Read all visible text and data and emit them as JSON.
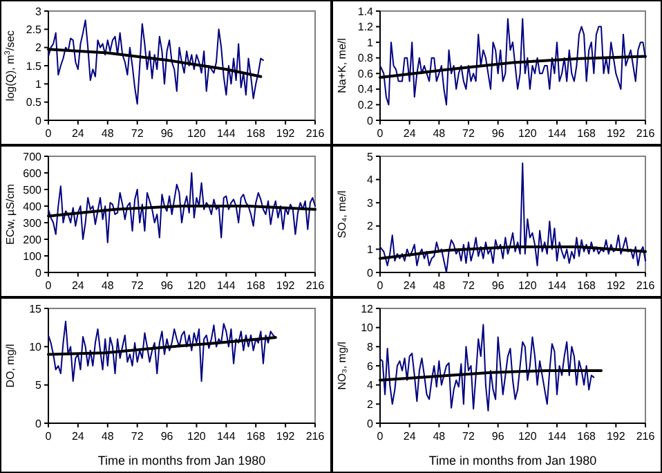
{
  "chart_data": [
    {
      "type": "line",
      "ylabel": "log(Q), m$^{3}$/sec",
      "xlim": [
        0,
        216
      ],
      "xticks": [
        0,
        24,
        48,
        72,
        96,
        120,
        144,
        168,
        192,
        216
      ],
      "ylim": [
        0,
        3
      ],
      "yticks": [
        0,
        0.5,
        1,
        1.5,
        2,
        2.5,
        3
      ],
      "series": [
        {
          "color": "#000080",
          "x": [
            0,
            2,
            4,
            6,
            8,
            10,
            12,
            14,
            16,
            18,
            20,
            22,
            24,
            26,
            28,
            30,
            32,
            34,
            36,
            38,
            40,
            42,
            44,
            46,
            48,
            50,
            52,
            54,
            56,
            58,
            60,
            62,
            64,
            66,
            68,
            70,
            72,
            74,
            76,
            78,
            80,
            82,
            84,
            86,
            88,
            90,
            92,
            94,
            96,
            98,
            100,
            102,
            104,
            106,
            108,
            110,
            112,
            114,
            116,
            118,
            120,
            122,
            124,
            126,
            128,
            130,
            132,
            134,
            136,
            138,
            140,
            142,
            144,
            146,
            148,
            150,
            152,
            154,
            156,
            158,
            160,
            162,
            164,
            166,
            168,
            170,
            172,
            174
          ],
          "values": [
            1.75,
            2.0,
            2.1,
            2.4,
            1.25,
            1.5,
            1.7,
            2.0,
            1.9,
            2.25,
            2.2,
            1.6,
            1.4,
            2.1,
            2.4,
            2.75,
            2.0,
            1.1,
            1.4,
            1.2,
            2.2,
            2.0,
            2.1,
            1.8,
            2.2,
            1.9,
            2.2,
            2.3,
            1.8,
            2.4,
            1.8,
            1.6,
            1.25,
            2.0,
            1.5,
            0.9,
            0.45,
            1.5,
            2.65,
            2.1,
            1.4,
            1.9,
            1.15,
            1.8,
            1.4,
            2.3,
            1.9,
            1.0,
            1.9,
            2.2,
            1.6,
            1.4,
            0.8,
            2.0,
            1.6,
            1.3,
            1.9,
            1.5,
            1.8,
            1.4,
            1.8,
            1.6,
            1.3,
            1.9,
            0.8,
            1.5,
            1.4,
            1.3,
            1.6,
            2.5,
            2.0,
            1.2,
            0.7,
            1.5,
            1.0,
            1.7,
            1.1,
            2.1,
            0.9,
            1.3,
            0.7,
            1.7,
            1.2,
            0.6,
            1.0,
            1.3,
            1.7,
            1.65
          ]
        },
        {
          "type": "line",
          "color": "#000000",
          "x": [
            0,
            48,
            96,
            144,
            172
          ],
          "values": [
            1.95,
            1.85,
            1.65,
            1.4,
            1.2
          ]
        }
      ]
    },
    {
      "type": "line",
      "ylabel": "Na+K, me/l",
      "xlim": [
        0,
        216
      ],
      "xticks": [
        0,
        24,
        48,
        72,
        96,
        120,
        144,
        168,
        192,
        216
      ],
      "ylim": [
        0,
        1.4
      ],
      "yticks": [
        0,
        0.2,
        0.4,
        0.6,
        0.8,
        1,
        1.2,
        1.4
      ],
      "series": [
        {
          "color": "#000080",
          "x": [
            0,
            3,
            5,
            7,
            9,
            11,
            13,
            15,
            18,
            20,
            22,
            24,
            26,
            28,
            30,
            32,
            34,
            36,
            38,
            40,
            42,
            44,
            46,
            48,
            50,
            52,
            54,
            56,
            58,
            60,
            62,
            64,
            66,
            68,
            70,
            72,
            74,
            76,
            78,
            80,
            82,
            84,
            86,
            88,
            90,
            92,
            94,
            96,
            98,
            100,
            102,
            104,
            106,
            108,
            110,
            112,
            114,
            116,
            118,
            120,
            122,
            124,
            126,
            128,
            130,
            132,
            134,
            136,
            138,
            140,
            142,
            144,
            146,
            148,
            150,
            152,
            154,
            156,
            158,
            160,
            162,
            164,
            166,
            168,
            170,
            172,
            174,
            176,
            178,
            180,
            182,
            184,
            186,
            188,
            190,
            192,
            194,
            196,
            198,
            200,
            202,
            204,
            206,
            208,
            210,
            212,
            214,
            216
          ],
          "values": [
            0.7,
            0.6,
            0.3,
            0.2,
            1.0,
            0.7,
            0.65,
            0.5,
            0.5,
            0.8,
            0.8,
            0.5,
            1.0,
            0.3,
            0.6,
            0.8,
            0.6,
            0.7,
            0.6,
            0.5,
            0.8,
            0.8,
            0.5,
            0.6,
            0.7,
            0.4,
            0.2,
            0.9,
            0.6,
            0.7,
            0.4,
            0.6,
            0.7,
            0.5,
            0.4,
            0.7,
            0.5,
            0.6,
            0.5,
            1.1,
            0.7,
            0.9,
            0.8,
            0.6,
            0.4,
            1.0,
            0.9,
            0.6,
            0.9,
            0.5,
            0.6,
            1.3,
            0.9,
            1.0,
            0.7,
            0.4,
            0.6,
            1.3,
            0.6,
            0.8,
            0.4,
            0.7,
            0.6,
            0.8,
            0.6,
            0.6,
            0.7,
            0.7,
            0.4,
            0.8,
            0.6,
            1.0,
            0.5,
            0.6,
            0.8,
            0.5,
            0.9,
            0.6,
            0.5,
            0.7,
            1.1,
            1.2,
            1.1,
            0.5,
            0.9,
            1.0,
            0.6,
            1.1,
            1.2,
            1.2,
            0.6,
            0.8,
            0.6,
            1.0,
            0.8,
            0.6,
            0.5,
            0.4,
            1.1,
            0.7,
            0.8,
            0.9,
            0.7,
            0.5,
            0.9,
            1.0,
            1.0,
            0.8
          ]
        },
        {
          "type": "line",
          "color": "#000000",
          "x": [
            0,
            54,
            108,
            162,
            216
          ],
          "values": [
            0.55,
            0.65,
            0.74,
            0.79,
            0.82
          ]
        }
      ]
    },
    {
      "type": "line",
      "ylabel": "ECw, µS/cm",
      "xlim": [
        0,
        216
      ],
      "xticks": [
        0,
        24,
        48,
        72,
        96,
        120,
        144,
        168,
        192,
        216
      ],
      "ylim": [
        0,
        700
      ],
      "yticks": [
        0,
        100,
        200,
        300,
        400,
        500,
        600,
        700
      ],
      "series": [
        {
          "color": "#000080",
          "x": [
            0,
            2,
            4,
            6,
            8,
            10,
            12,
            14,
            16,
            18,
            20,
            22,
            24,
            26,
            28,
            30,
            32,
            34,
            36,
            38,
            40,
            42,
            44,
            46,
            48,
            50,
            52,
            54,
            56,
            58,
            60,
            62,
            64,
            66,
            68,
            70,
            72,
            74,
            76,
            78,
            80,
            82,
            84,
            86,
            88,
            90,
            92,
            94,
            96,
            98,
            100,
            102,
            104,
            106,
            108,
            110,
            112,
            114,
            116,
            118,
            120,
            122,
            124,
            126,
            128,
            130,
            132,
            134,
            136,
            138,
            140,
            142,
            144,
            146,
            148,
            150,
            152,
            154,
            156,
            158,
            160,
            162,
            164,
            166,
            168,
            170,
            172,
            174,
            176,
            178,
            180,
            182,
            184,
            186,
            188,
            190,
            192,
            194,
            196,
            198,
            200,
            202,
            204,
            206,
            208,
            210,
            212,
            214,
            216
          ],
          "values": [
            380,
            330,
            300,
            230,
            400,
            520,
            300,
            370,
            350,
            300,
            390,
            280,
            360,
            400,
            200,
            300,
            450,
            380,
            400,
            290,
            370,
            450,
            320,
            400,
            180,
            420,
            410,
            350,
            360,
            480,
            410,
            320,
            400,
            420,
            250,
            440,
            500,
            300,
            410,
            250,
            480,
            430,
            380,
            300,
            350,
            210,
            470,
            400,
            370,
            460,
            350,
            440,
            530,
            480,
            300,
            400,
            460,
            360,
            600,
            330,
            450,
            400,
            540,
            380,
            420,
            400,
            350,
            440,
            380,
            400,
            210,
            450,
            460,
            380,
            420,
            440,
            400,
            300,
            450,
            470,
            420,
            400,
            350,
            280,
            420,
            480,
            440,
            380,
            350,
            430,
            290,
            380,
            430,
            330,
            400,
            260,
            390,
            350,
            410,
            380,
            230,
            360,
            420,
            380,
            430,
            260,
            420,
            450,
            400
          ]
        },
        {
          "type": "line",
          "color": "#000000",
          "x": [
            0,
            54,
            108,
            162,
            216
          ],
          "values": [
            340,
            380,
            400,
            400,
            380
          ]
        }
      ]
    },
    {
      "type": "line",
      "ylabel": "SO₄, me/l",
      "xlim": [
        0,
        216
      ],
      "xticks": [
        0,
        24,
        48,
        72,
        96,
        120,
        144,
        168,
        192,
        216
      ],
      "ylim": [
        0,
        5
      ],
      "yticks": [
        0,
        1,
        2,
        3,
        4,
        5
      ],
      "series": [
        {
          "color": "#000080",
          "x": [
            0,
            3,
            6,
            8,
            10,
            12,
            14,
            16,
            18,
            20,
            22,
            24,
            26,
            28,
            30,
            32,
            34,
            36,
            38,
            40,
            42,
            44,
            46,
            48,
            50,
            52,
            54,
            56,
            58,
            60,
            62,
            64,
            66,
            68,
            70,
            72,
            74,
            76,
            78,
            80,
            82,
            84,
            86,
            88,
            90,
            92,
            94,
            96,
            98,
            100,
            102,
            104,
            106,
            108,
            110,
            112,
            114,
            116,
            118,
            120,
            122,
            124,
            126,
            128,
            130,
            132,
            134,
            136,
            138,
            140,
            142,
            144,
            146,
            148,
            150,
            152,
            154,
            156,
            158,
            160,
            162,
            164,
            166,
            168,
            170,
            172,
            174,
            176,
            178,
            180,
            182,
            184,
            186,
            188,
            190,
            192,
            194,
            196,
            198,
            200,
            202,
            204,
            206,
            208,
            210,
            212,
            214,
            216
          ],
          "values": [
            1.1,
            0.9,
            0.3,
            0.8,
            1.6,
            0.5,
            0.8,
            0.6,
            0.8,
            0.5,
            1.0,
            0.7,
            0.9,
            1.2,
            0.3,
            0.8,
            1.0,
            0.6,
            0.9,
            0.3,
            0.6,
            0.7,
            1.3,
            0.9,
            1.0,
            0.5,
            0.0,
            0.9,
            1.4,
            1.2,
            0.8,
            1.0,
            0.5,
            1.2,
            0.4,
            1.3,
            0.5,
            0.9,
            1.5,
            0.7,
            1.1,
            0.6,
            1.3,
            0.8,
            1.0,
            0.4,
            1.4,
            1.0,
            1.2,
            0.6,
            1.5,
            0.8,
            1.2,
            1.7,
            0.9,
            1.3,
            0.8,
            4.7,
            0.8,
            2.3,
            1.5,
            1.7,
            1.2,
            0.3,
            1.8,
            0.9,
            1.3,
            0.8,
            2.2,
            1.0,
            1.9,
            0.5,
            1.3,
            0.9,
            0.6,
            1.0,
            0.4,
            0.9,
            0.6,
            1.5,
            0.7,
            1.4,
            0.9,
            1.2,
            0.8,
            1.3,
            0.9,
            1.1,
            0.8,
            1.0,
            0.9,
            1.4,
            0.8,
            1.2,
            0.9,
            1.0,
            1.6,
            0.8,
            1.1,
            1.5,
            0.9,
            1.0,
            0.6,
            1.1,
            0.3,
            0.9,
            1.1,
            0.5
          ]
        },
        {
          "type": "line",
          "color": "#000000",
          "x": [
            0,
            54,
            108,
            162,
            216
          ],
          "values": [
            0.6,
            0.95,
            1.1,
            1.1,
            0.9
          ]
        }
      ]
    },
    {
      "type": "line",
      "ylabel": "DO, mg/l",
      "xlabel": "Time in months from Jan 1980",
      "xlim": [
        0,
        216
      ],
      "xticks": [
        0,
        24,
        48,
        72,
        96,
        120,
        144,
        168,
        192,
        216
      ],
      "ylim": [
        0,
        15
      ],
      "yticks": [
        0,
        5,
        10,
        15
      ],
      "series": [
        {
          "color": "#000080",
          "x": [
            0,
            2,
            4,
            6,
            8,
            10,
            12,
            14,
            16,
            18,
            20,
            22,
            24,
            26,
            28,
            30,
            32,
            34,
            36,
            38,
            40,
            42,
            44,
            46,
            48,
            50,
            52,
            54,
            56,
            58,
            60,
            62,
            64,
            66,
            68,
            70,
            72,
            74,
            76,
            78,
            80,
            82,
            84,
            86,
            88,
            90,
            92,
            94,
            96,
            98,
            100,
            102,
            104,
            106,
            108,
            110,
            112,
            114,
            116,
            118,
            120,
            122,
            124,
            126,
            128,
            130,
            132,
            134,
            136,
            138,
            140,
            142,
            144,
            146,
            148,
            150,
            152,
            154,
            156,
            158,
            160,
            162,
            164,
            166,
            168,
            170,
            172,
            174,
            176,
            178,
            180,
            182,
            184
          ],
          "values": [
            11.5,
            10.5,
            9.0,
            7.0,
            7.5,
            6.5,
            10.5,
            13.3,
            9.0,
            10.0,
            5.5,
            8.5,
            9.0,
            7.0,
            11.3,
            10.0,
            7.5,
            9.5,
            7.5,
            10.5,
            12.3,
            9.5,
            7.0,
            11.0,
            7.5,
            11.2,
            10.0,
            6.5,
            11.0,
            8.5,
            10.0,
            11.5,
            8.0,
            9.0,
            7.5,
            10.5,
            8.0,
            9.5,
            8.5,
            11.8,
            10.0,
            8.0,
            9.5,
            10.5,
            6.5,
            10.5,
            12.0,
            9.0,
            11.0,
            9.5,
            10.5,
            12.3,
            11.0,
            10.0,
            11.5,
            12.0,
            10.0,
            11.5,
            9.5,
            11.8,
            10.5,
            12.3,
            5.5,
            11.0,
            11.5,
            9.8,
            11.0,
            12.8,
            10.0,
            11.0,
            10.5,
            13.0,
            12.0,
            10.0,
            12.3,
            7.8,
            11.0,
            10.5,
            12.0,
            9.5,
            11.5,
            10.0,
            11.5,
            9.5,
            11.0,
            10.5,
            12.0,
            7.8,
            11.5,
            10.5,
            12.0,
            11.5,
            11.2
          ]
        },
        {
          "type": "line",
          "color": "#000000",
          "x": [
            0,
            46,
            92,
            138,
            184
          ],
          "values": [
            9.0,
            9.2,
            9.9,
            10.5,
            11.2
          ]
        }
      ]
    },
    {
      "type": "line",
      "ylabel": "NO₃, mg/l",
      "xlabel": "Time in months from Jan 1980",
      "xlim": [
        0,
        216
      ],
      "xticks": [
        0,
        24,
        48,
        72,
        96,
        120,
        144,
        168,
        192,
        216
      ],
      "ylim": [
        0,
        12
      ],
      "yticks": [
        0,
        2,
        4,
        6,
        8,
        10,
        12
      ],
      "series": [
        {
          "color": "#000080",
          "x": [
            0,
            2,
            4,
            6,
            8,
            10,
            12,
            14,
            16,
            18,
            20,
            22,
            24,
            26,
            28,
            30,
            32,
            34,
            36,
            38,
            40,
            42,
            44,
            46,
            48,
            50,
            52,
            54,
            56,
            58,
            60,
            62,
            64,
            66,
            68,
            70,
            72,
            74,
            76,
            78,
            80,
            82,
            84,
            86,
            88,
            90,
            92,
            94,
            96,
            98,
            100,
            102,
            104,
            106,
            108,
            110,
            112,
            114,
            116,
            118,
            120,
            122,
            124,
            126,
            128,
            130,
            132,
            134,
            136,
            138,
            140,
            142,
            144,
            146,
            148,
            150,
            152,
            154,
            156,
            158,
            160,
            162,
            164,
            166,
            168,
            170,
            172,
            174
          ],
          "values": [
            6.7,
            6.5,
            3.0,
            7.8,
            4.0,
            2.0,
            3.5,
            6.0,
            6.5,
            5.5,
            6.8,
            4.5,
            7.0,
            7.3,
            5.0,
            2.3,
            5.5,
            6.8,
            5.0,
            3.0,
            2.5,
            4.5,
            6.0,
            3.8,
            6.5,
            4.0,
            5.0,
            6.0,
            6.3,
            1.6,
            3.5,
            4.5,
            3.8,
            6.2,
            2.0,
            8.0,
            5.5,
            6.0,
            1.5,
            5.0,
            8.8,
            7.0,
            10.3,
            4.0,
            1.3,
            5.5,
            3.5,
            2.5,
            9.0,
            6.0,
            3.0,
            5.0,
            7.0,
            7.8,
            4.5,
            2.5,
            3.5,
            6.0,
            8.5,
            8.0,
            4.5,
            6.0,
            9.0,
            7.0,
            4.0,
            6.5,
            5.0,
            3.5,
            2.0,
            5.5,
            8.3,
            7.5,
            3.0,
            6.0,
            5.0,
            7.0,
            8.5,
            5.0,
            8.0,
            7.0,
            4.0,
            6.5,
            5.5,
            4.0,
            6.0,
            3.5,
            5.0,
            4.8
          ]
        },
        {
          "type": "line",
          "color": "#000000",
          "x": [
            0,
            45,
            90,
            135,
            180
          ],
          "values": [
            4.5,
            4.9,
            5.3,
            5.5,
            5.5
          ]
        }
      ]
    }
  ]
}
